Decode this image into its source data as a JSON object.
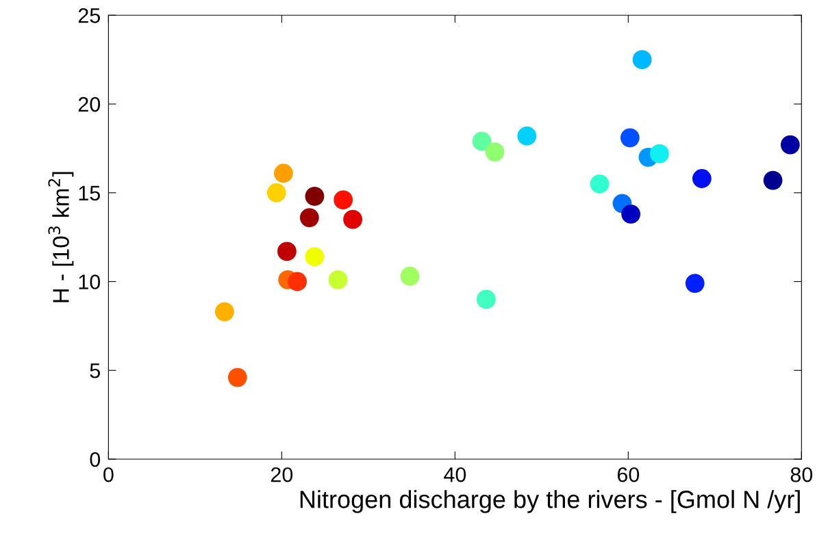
{
  "chart_data": {
    "type": "scatter",
    "xlabel": "Nitrogen discharge by the rivers - [Gmol N /yr]",
    "ylabel": "H - [10$^{3}$ km$^{2}$]",
    "x": [
      13.4,
      14.9,
      19.4,
      20.2,
      20.6,
      20.7,
      21.8,
      23.2,
      23.8,
      23.8,
      26.5,
      27.1,
      28.2,
      34.8,
      43.1,
      43.6,
      44.6,
      48.3,
      56.7,
      59.3,
      60.2,
      60.3,
      61.6,
      62.3,
      63.6,
      67.7,
      68.5,
      76.7,
      78.7
    ],
    "values": [
      8.3,
      4.6,
      15.0,
      16.1,
      11.7,
      10.1,
      10.0,
      13.6,
      14.8,
      11.4,
      10.1,
      14.6,
      13.5,
      10.3,
      17.9,
      9.0,
      17.3,
      18.2,
      15.5,
      14.4,
      18.1,
      13.8,
      22.5,
      17.0,
      17.2,
      9.9,
      15.8,
      15.7,
      17.7
    ],
    "colors": [
      "#ffb000",
      "#ff5000",
      "#ffd000",
      "#ffa000",
      "#c00000",
      "#ff6800",
      "#ff3000",
      "#a00000",
      "#800000",
      "#f0ff00",
      "#c8ff30",
      "#ff1000",
      "#e00000",
      "#a0ff60",
      "#60ffa0",
      "#40ffc0",
      "#90ff70",
      "#00d0ff",
      "#30ffd0",
      "#0070ff",
      "#0050ff",
      "#0000c0",
      "#00b8ff",
      "#0098ff",
      "#10f0f0",
      "#0020ff",
      "#0010f0",
      "#000090",
      "#0000a0"
    ],
    "marker": "circle",
    "xlim": [
      0,
      80
    ],
    "xticks": [
      0,
      20,
      40,
      60,
      80
    ],
    "ylim": [
      0,
      25
    ],
    "yticks": [
      0,
      5,
      10,
      15,
      20,
      25
    ],
    "grid": false
  }
}
